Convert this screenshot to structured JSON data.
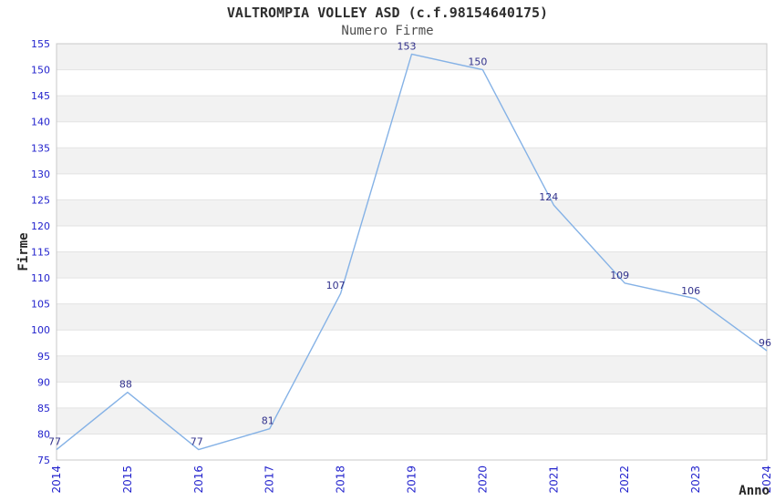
{
  "chart_data": {
    "type": "line",
    "title": "VALTROMPIA VOLLEY ASD (c.f.98154640175)",
    "subtitle": "Numero Firme",
    "xlabel": "Anno",
    "ylabel": "Firme",
    "categories": [
      "2014",
      "2015",
      "2016",
      "2017",
      "2018",
      "2019",
      "2020",
      "2021",
      "2022",
      "2023",
      "2024"
    ],
    "series": [
      {
        "name": "Numero Firme",
        "values": [
          77,
          88,
          77,
          81,
          107,
          153,
          150,
          124,
          109,
          106,
          96
        ]
      }
    ],
    "ylim": [
      75,
      155
    ],
    "ytick_step": 5,
    "grid": "horizontal",
    "banding": "alternating-gray-every-5-units",
    "legend": "none",
    "data_labels": true,
    "x_tick_rotation": -90,
    "colors": {
      "line": "#85b2e6",
      "tick_label": "#2323cd",
      "data_label": "#32328c",
      "band": "#f2f2f2",
      "grid": "#e3e3e3",
      "border": "#c8c8c8",
      "title": "#2e2e2e",
      "subtitle": "#4d4d4d",
      "axis_title": "#262626"
    }
  }
}
